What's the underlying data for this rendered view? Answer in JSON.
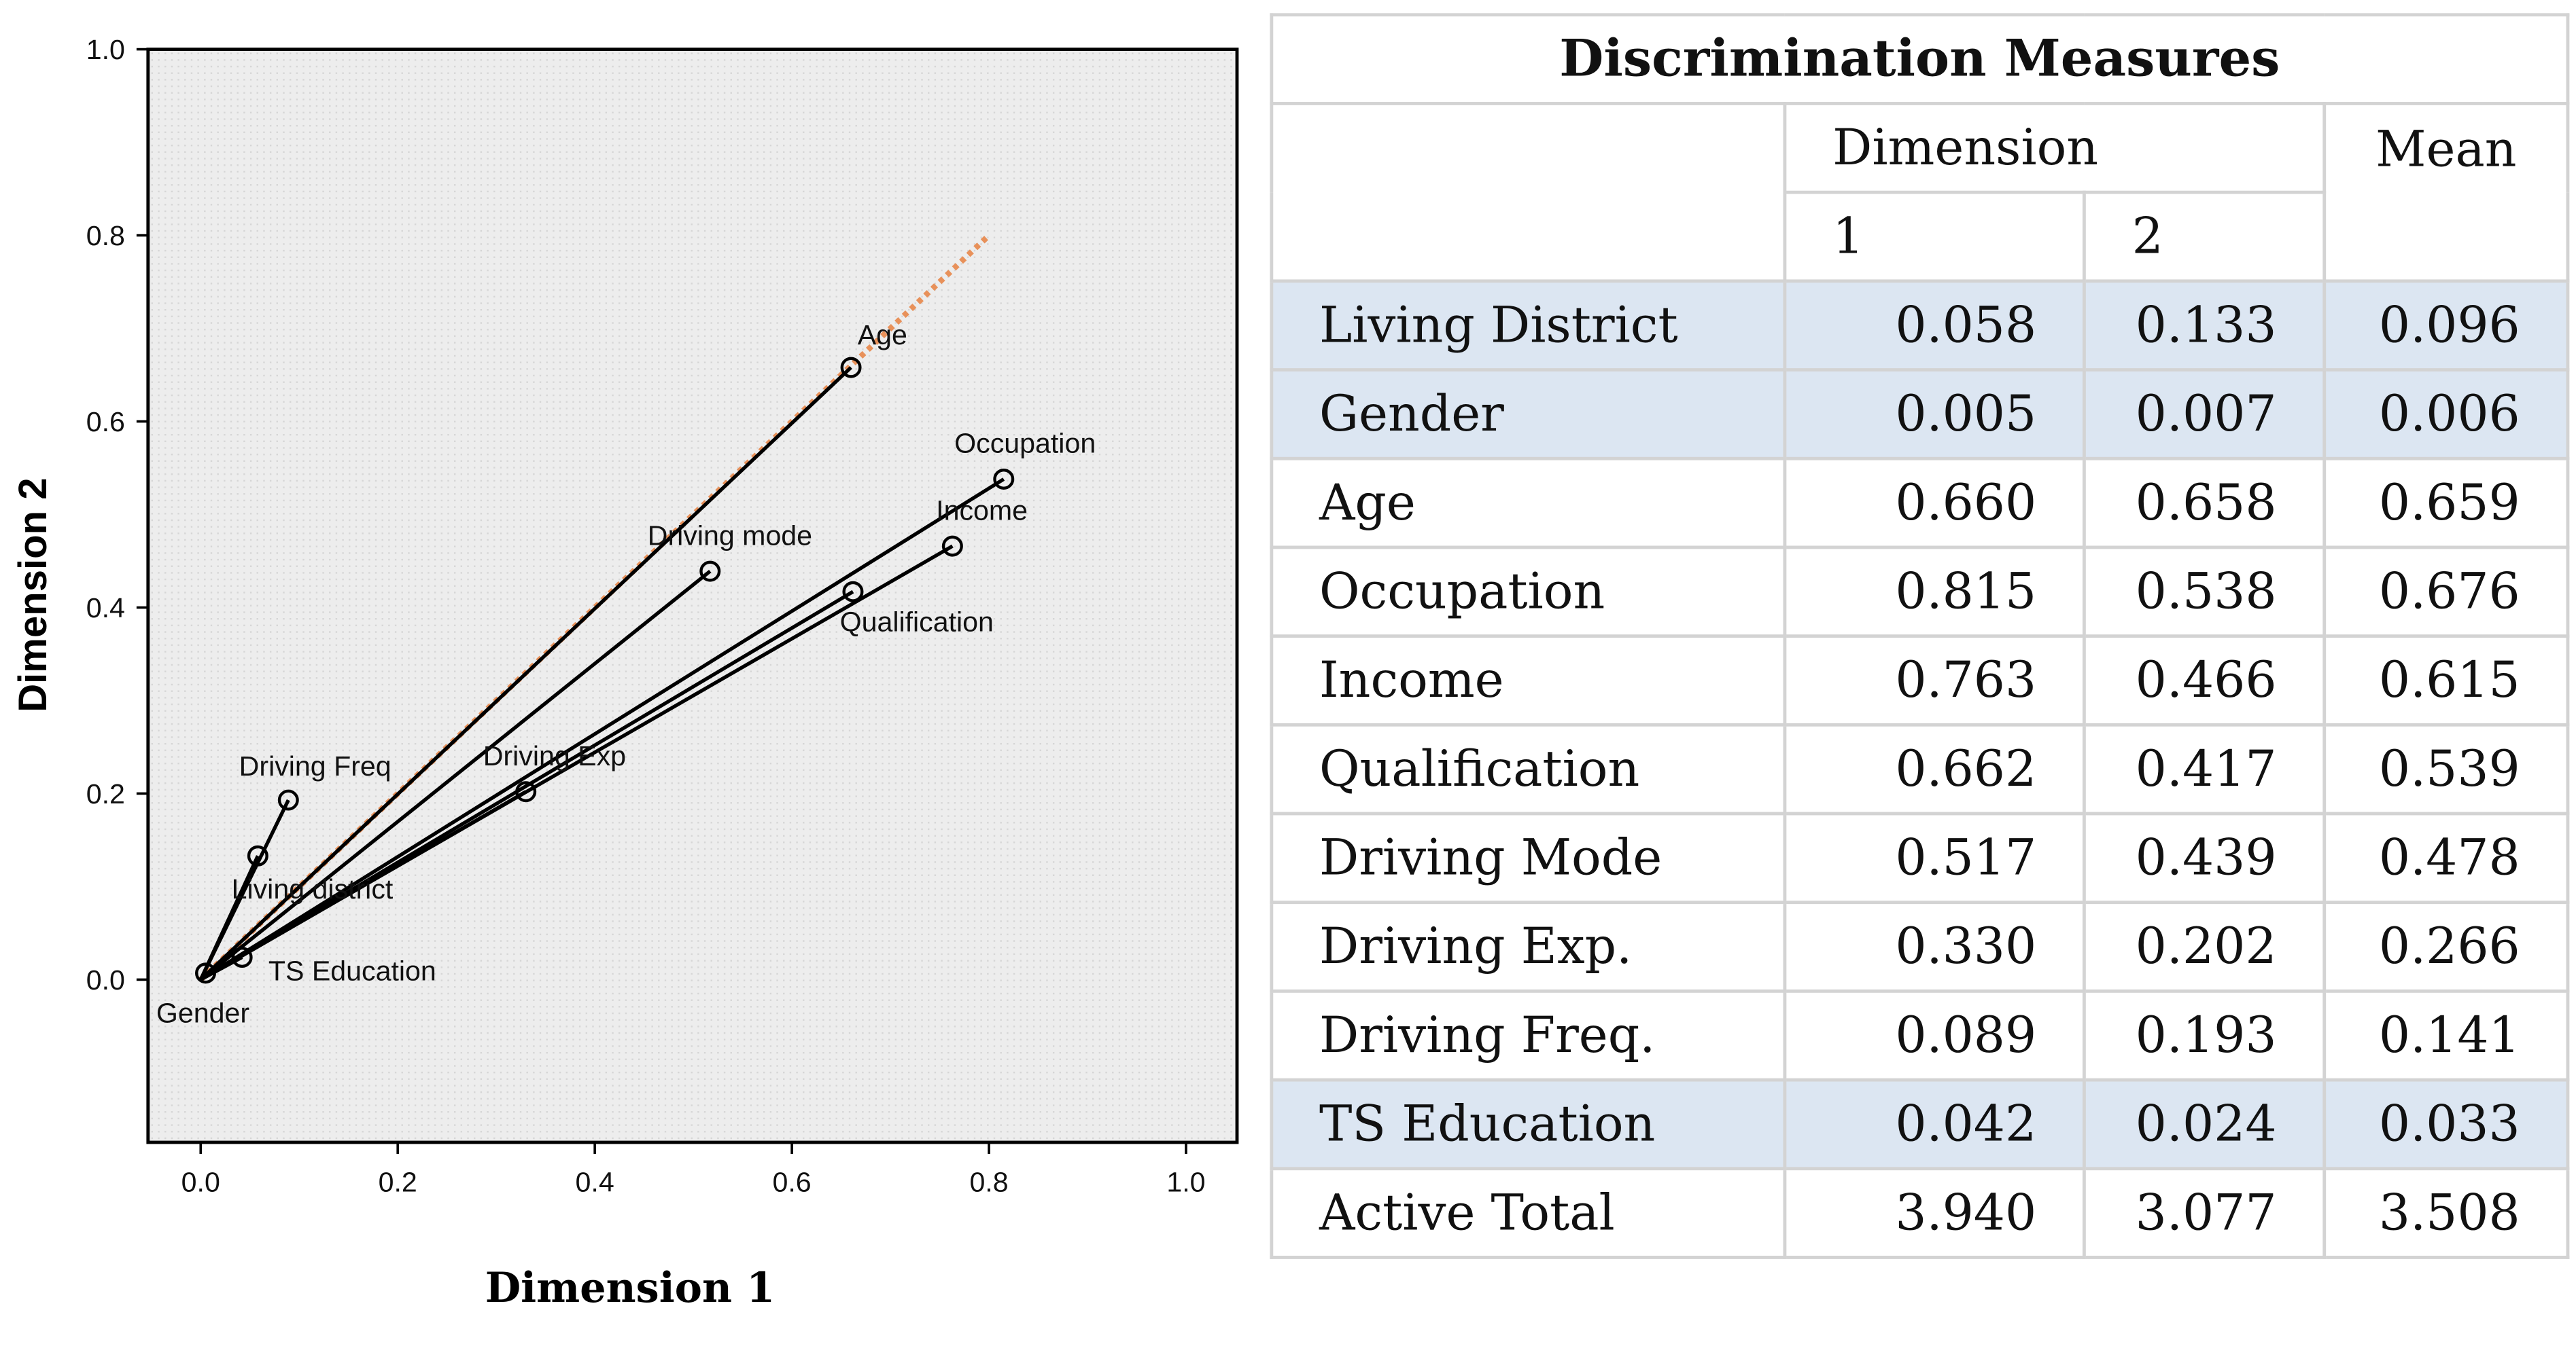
{
  "chart_data": [
    {
      "type": "scatter",
      "subtype": "discrimination-measures-vector-plot",
      "xlabel": "Dimension 1",
      "ylabel": "Dimension 2",
      "xlim": [
        -0.05,
        1.05
      ],
      "ylim": [
        -0.17,
        1.0
      ],
      "xticks": [
        0.0,
        0.2,
        0.4,
        0.6,
        0.8,
        1.0
      ],
      "yticks": [
        0.0,
        0.2,
        0.4,
        0.6,
        0.8,
        1.0
      ],
      "xtick_labels": [
        "0.0",
        "0.2",
        "0.4",
        "0.6",
        "0.8",
        "1.0"
      ],
      "ytick_labels": [
        "0.0",
        "0.2",
        "0.4",
        "0.6",
        "0.8",
        "1.0"
      ],
      "grid": false,
      "background": "#e9e9e9",
      "vector_color": "#000000",
      "reference_line": {
        "x": [
          0.0,
          0.8
        ],
        "y": [
          0.0,
          0.8
        ],
        "color": "#e8915a",
        "style": "dotted"
      },
      "points": [
        {
          "label": "Age",
          "x": 0.66,
          "y": 0.658
        },
        {
          "label": "Occupation",
          "x": 0.815,
          "y": 0.538
        },
        {
          "label": "Income",
          "x": 0.763,
          "y": 0.466
        },
        {
          "label": "Qualification",
          "x": 0.662,
          "y": 0.417
        },
        {
          "label": "Driving mode",
          "x": 0.517,
          "y": 0.439
        },
        {
          "label": "Driving Exp",
          "x": 0.33,
          "y": 0.202
        },
        {
          "label": "Driving Freq",
          "x": 0.089,
          "y": 0.193
        },
        {
          "label": "Living district",
          "x": 0.058,
          "y": 0.133
        },
        {
          "label": "TS Education",
          "x": 0.042,
          "y": 0.024
        },
        {
          "label": "Gender",
          "x": 0.005,
          "y": 0.007
        }
      ]
    },
    {
      "type": "table",
      "title": "Discrimination Measures",
      "header_group": "Dimension",
      "header_mean": "Mean",
      "columns": [
        "1",
        "2"
      ],
      "rows": [
        {
          "label": "Living District",
          "values": [
            "0.058",
            "0.133",
            "0.096"
          ],
          "shaded": true
        },
        {
          "label": "Gender",
          "values": [
            "0.005",
            "0.007",
            "0.006"
          ],
          "shaded": true
        },
        {
          "label": "Age",
          "values": [
            "0.660",
            "0.658",
            "0.659"
          ],
          "shaded": false
        },
        {
          "label": "Occupation",
          "values": [
            "0.815",
            "0.538",
            "0.676"
          ],
          "shaded": false
        },
        {
          "label": "Income",
          "values": [
            "0.763",
            "0.466",
            "0.615"
          ],
          "shaded": false
        },
        {
          "label": "Qualification",
          "values": [
            "0.662",
            "0.417",
            "0.539"
          ],
          "shaded": false
        },
        {
          "label": "Driving Mode",
          "values": [
            "0.517",
            "0.439",
            "0.478"
          ],
          "shaded": false
        },
        {
          "label": "Driving Exp.",
          "values": [
            "0.330",
            "0.202",
            "0.266"
          ],
          "shaded": false
        },
        {
          "label": "Driving Freq.",
          "values": [
            "0.089",
            "0.193",
            "0.141"
          ],
          "shaded": false
        },
        {
          "label": "TS Education",
          "values": [
            "0.042",
            "0.024",
            "0.033"
          ],
          "shaded": true
        },
        {
          "label": "Active Total",
          "values": [
            "3.940",
            "3.077",
            "3.508"
          ],
          "shaded": false
        }
      ],
      "shade_color": "#dce6f2"
    }
  ]
}
